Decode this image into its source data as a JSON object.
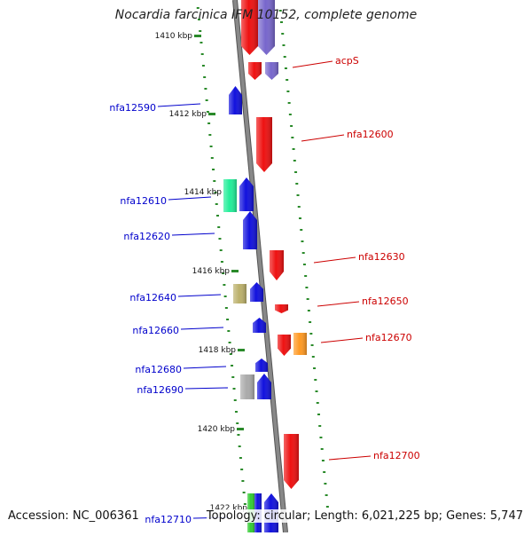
{
  "title": "Nocardia farcinica IFM 10152, complete genome",
  "footer": {
    "accession": "Accession: NC_006361",
    "info": "Topology: circular; Length: 6,021,225 bp; Genes: 5,747"
  },
  "colors": {
    "backbone": "#888888",
    "ticks": "#2a8a2a",
    "left_label": "#0000cc",
    "right_label": "#cc0000"
  },
  "ticks": [
    "1410 kbp",
    "1412 kbp",
    "1414 kbp",
    "1416 kbp",
    "1418 kbp",
    "1420 kbp",
    "1422 kbp"
  ],
  "genes": [
    {
      "color": "#ee1111"
    },
    {
      "color": "#7766cc"
    },
    {
      "color": "#ee1111"
    },
    {
      "color": "#7766cc"
    },
    {
      "color": "#1111dd"
    },
    {
      "color": "#ee1111"
    },
    {
      "color": "#22ee99"
    },
    {
      "color": "#1111dd"
    },
    {
      "color": "#1111dd"
    },
    {
      "color": "#ee1111"
    },
    {
      "color": "#bbb06a"
    },
    {
      "color": "#1111dd"
    },
    {
      "color": "#ee1111"
    },
    {
      "color": "#1111dd"
    },
    {
      "color": "#ee1111"
    },
    {
      "color": "#ff9922"
    },
    {
      "color": "#1111dd"
    },
    {
      "color": "#aaaaaa"
    },
    {
      "color": "#1111dd"
    },
    {
      "color": "#ee1111"
    },
    {
      "color": "#33cc33"
    },
    {
      "color": "#1111dd"
    },
    {
      "color": "#1111dd"
    }
  ],
  "labels_left": [
    "nfa12590",
    "nfa12610",
    "nfa12620",
    "nfa12640",
    "nfa12660",
    "nfa12680",
    "nfa12690",
    "nfa12710"
  ],
  "labels_right": [
    "acpS",
    "nfa12600",
    "nfa12630",
    "nfa12650",
    "nfa12670",
    "nfa12700"
  ]
}
